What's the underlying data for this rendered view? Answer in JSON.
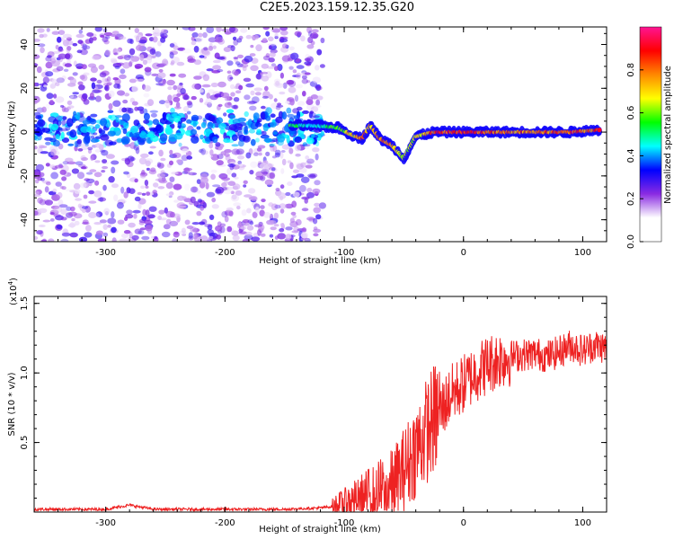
{
  "title": "C2E5.2023.159.12.35.G20",
  "chart_data": [
    {
      "type": "heatmap",
      "xlabel": "Height of straight line (km)",
      "ylabel": "Frequency (Hz)",
      "xlim": [
        -360,
        120
      ],
      "ylim": [
        -50,
        48
      ],
      "xticks": [
        -300,
        -200,
        -100,
        0,
        100
      ],
      "yticks": [
        -40,
        -20,
        0,
        20,
        40
      ],
      "colorbar": {
        "label": "Normalized spectral amplitude",
        "range": [
          0.0,
          1.0
        ],
        "ticks": [
          "0.0",
          "0.2",
          "0.4",
          "0.6",
          "0.8"
        ],
        "colors": [
          "#ffffff",
          "#ffffff",
          "#8a2be2",
          "#0000ff",
          "#00ffff",
          "#00ff00",
          "#ffff00",
          "#ff8800",
          "#ff0000",
          "#ff1493"
        ]
      },
      "features": {
        "noise_region_x": [
          -360,
          -118
        ],
        "track": [
          {
            "x": -145,
            "y": 3,
            "v": 0.55
          },
          {
            "x": -125,
            "y": 3,
            "v": 0.45
          },
          {
            "x": -105,
            "y": 2,
            "v": 0.6
          },
          {
            "x": -95,
            "y": -1,
            "v": 0.7
          },
          {
            "x": -85,
            "y": -3,
            "v": 0.8
          },
          {
            "x": -78,
            "y": 3,
            "v": 0.75
          },
          {
            "x": -70,
            "y": -3,
            "v": 0.8
          },
          {
            "x": -60,
            "y": -6,
            "v": 0.75
          },
          {
            "x": -50,
            "y": -12,
            "v": 0.6
          },
          {
            "x": -40,
            "y": -2,
            "v": 0.65
          },
          {
            "x": -25,
            "y": 0,
            "v": 0.85
          },
          {
            "x": 0,
            "y": 0,
            "v": 0.9
          },
          {
            "x": 30,
            "y": 0,
            "v": 0.8
          },
          {
            "x": 60,
            "y": 0,
            "v": 0.8
          },
          {
            "x": 90,
            "y": 0,
            "v": 0.85
          },
          {
            "x": 115,
            "y": 1,
            "v": 0.85
          }
        ]
      }
    },
    {
      "type": "line",
      "xlabel": "Height of straight line (km)",
      "ylabel": "SNR (10 * v/v)",
      "yscale_label": "(x10",
      "yscale_exp": "4",
      "yscale_close": ")",
      "xlim": [
        -360,
        120
      ],
      "ylim": [
        0,
        1.55
      ],
      "xticks": [
        -300,
        -200,
        -100,
        0,
        100
      ],
      "yticks": [
        0.5,
        1.0,
        1.5
      ],
      "ytick_labels": [
        "0.5",
        "1.0",
        "1.5"
      ],
      "color": "#ee2222",
      "series": [
        {
          "x": [
            -360,
            -300,
            -280,
            -260,
            -200,
            -150,
            -120,
            -100,
            -80,
            -60,
            -50,
            -40,
            -30,
            -20,
            -10,
            0,
            10,
            20,
            30,
            40,
            60,
            70,
            80,
            90,
            100,
            110,
            120
          ],
          "values": [
            0.02,
            0.02,
            0.05,
            0.02,
            0.02,
            0.02,
            0.03,
            0.05,
            0.12,
            0.18,
            0.3,
            0.45,
            0.6,
            0.72,
            0.85,
            0.92,
            1.0,
            1.06,
            1.1,
            1.12,
            1.14,
            1.12,
            1.15,
            1.2,
            1.16,
            1.2,
            1.18
          ]
        }
      ]
    }
  ]
}
